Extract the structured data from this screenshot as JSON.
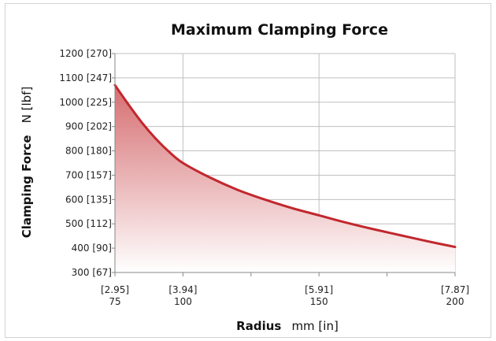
{
  "chart_data": {
    "type": "area",
    "title": "Maximum Clamping Force",
    "xlabel": {
      "name": "Radius",
      "unit": "mm [in]"
    },
    "ylabel": {
      "name": "Clamping Force",
      "unit": "N [lbf]"
    },
    "xlim": [
      75,
      200
    ],
    "ylim": [
      300,
      1200
    ],
    "x_ticks": [
      {
        "value": 75,
        "label_top": "[2.95]",
        "label_bottom": "75"
      },
      {
        "value": 100,
        "label_top": "[3.94]",
        "label_bottom": "100"
      },
      {
        "value": 150,
        "label_top": "[5.91]",
        "label_bottom": "150"
      },
      {
        "value": 200,
        "label_top": "[7.87]",
        "label_bottom": "200"
      }
    ],
    "y_ticks": [
      {
        "value": 300,
        "label": "300 [67]"
      },
      {
        "value": 400,
        "label": "400 [90]"
      },
      {
        "value": 500,
        "label": "500 [112]"
      },
      {
        "value": 600,
        "label": "600 [135]"
      },
      {
        "value": 700,
        "label": "700 [157]"
      },
      {
        "value": 800,
        "label": "800 [180]"
      },
      {
        "value": 900,
        "label": "900 [202]"
      },
      {
        "value": 1000,
        "label": "1000 [225]"
      },
      {
        "value": 1100,
        "label": "1100 [247]"
      },
      {
        "value": 1200,
        "label": "1200 [270]"
      }
    ],
    "x": [
      75,
      80,
      85,
      90,
      95,
      100,
      110,
      120,
      130,
      140,
      150,
      160,
      170,
      180,
      190,
      200
    ],
    "series": [
      {
        "values": [
          1070,
          990,
          915,
          850,
          795,
          750,
          690,
          640,
          600,
          565,
          535,
          505,
          478,
          453,
          428,
          405
        ]
      }
    ],
    "grid": true,
    "colors": {
      "line": "#c1272d",
      "fill_top": "#d4676a",
      "fill_bottom": "#ffffff",
      "grid": "#bfbfbf"
    }
  }
}
